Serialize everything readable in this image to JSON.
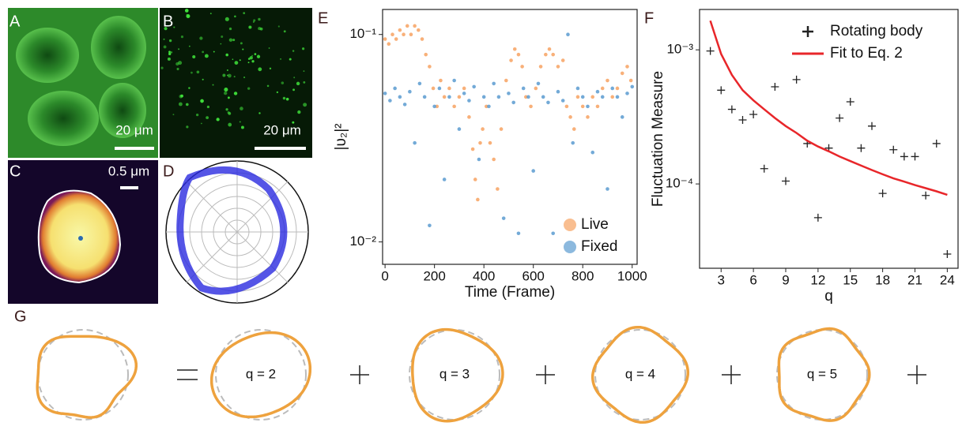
{
  "panels": {
    "labels": [
      "A",
      "B",
      "C",
      "D",
      "E",
      "F",
      "G"
    ],
    "scale_bars": [
      "20 μm",
      "20 μm",
      "0.5 μm"
    ],
    "decomposition": [
      "q = 2",
      "q = 3",
      "q = 4",
      "q = 5"
    ]
  },
  "chart_data": [
    {
      "type": "scatter",
      "xlabel": "Time (Frame)",
      "ylabel": "|υ₂|²",
      "log_y": true,
      "legend": "lower right",
      "xlim": [
        -10,
        1020
      ],
      "ylim": [
        0.0078,
        0.132
      ],
      "xticks": [
        0,
        200,
        400,
        600,
        800,
        1000
      ],
      "yticks": [
        {
          "value": 0.01,
          "label": "10⁻²"
        },
        {
          "value": 0.1,
          "label": "10⁻¹"
        }
      ],
      "series": [
        {
          "name": "Live",
          "color": "#f7a261",
          "x": [
            0,
            15,
            30,
            45,
            60,
            75,
            90,
            105,
            120,
            135,
            150,
            165,
            180,
            195,
            210,
            225,
            240,
            260,
            280,
            300,
            320,
            340,
            355,
            365,
            375,
            385,
            395,
            410,
            425,
            440,
            455,
            470,
            490,
            510,
            525,
            540,
            555,
            570,
            590,
            610,
            630,
            650,
            665,
            680,
            700,
            720,
            735,
            750,
            765,
            780,
            800,
            820,
            840,
            860,
            880,
            900,
            920,
            940,
            960,
            980,
            995
          ],
          "values": [
            0.095,
            0.09,
            0.1,
            0.095,
            0.105,
            0.1,
            0.11,
            0.1,
            0.11,
            0.105,
            0.095,
            0.08,
            0.07,
            0.055,
            0.045,
            0.06,
            0.05,
            0.055,
            0.045,
            0.05,
            0.055,
            0.04,
            0.028,
            0.02,
            0.016,
            0.03,
            0.035,
            0.045,
            0.03,
            0.025,
            0.018,
            0.035,
            0.06,
            0.075,
            0.085,
            0.08,
            0.07,
            0.05,
            0.045,
            0.055,
            0.07,
            0.08,
            0.085,
            0.08,
            0.07,
            0.075,
            0.045,
            0.04,
            0.035,
            0.05,
            0.045,
            0.04,
            0.05,
            0.045,
            0.055,
            0.06,
            0.05,
            0.055,
            0.065,
            0.07,
            0.06
          ]
        },
        {
          "name": "Fixed",
          "color": "#5b9bd0",
          "x": [
            0,
            20,
            40,
            60,
            80,
            100,
            120,
            140,
            160,
            180,
            200,
            220,
            240,
            260,
            280,
            300,
            320,
            340,
            360,
            380,
            400,
            420,
            440,
            460,
            480,
            500,
            520,
            540,
            560,
            580,
            600,
            620,
            640,
            660,
            680,
            700,
            720,
            740,
            760,
            780,
            800,
            820,
            840,
            860,
            880,
            900,
            920,
            940,
            960,
            980,
            1000
          ],
          "values": [
            0.052,
            0.048,
            0.055,
            0.05,
            0.046,
            0.053,
            0.03,
            0.058,
            0.05,
            0.012,
            0.045,
            0.055,
            0.02,
            0.05,
            0.06,
            0.035,
            0.052,
            0.048,
            0.056,
            0.025,
            0.05,
            0.045,
            0.058,
            0.05,
            0.013,
            0.052,
            0.047,
            0.011,
            0.055,
            0.05,
            0.022,
            0.058,
            0.05,
            0.047,
            0.011,
            0.053,
            0.048,
            0.1,
            0.03,
            0.055,
            0.05,
            0.045,
            0.027,
            0.053,
            0.05,
            0.018,
            0.055,
            0.05,
            0.04,
            0.052,
            0.056
          ]
        }
      ]
    },
    {
      "type": "scatter",
      "xlabel": "q",
      "ylabel": "Fluctuation Measure",
      "log_y": true,
      "legend": "upper right",
      "xlim": [
        1,
        25
      ],
      "ylim": [
        2.35e-05,
        0.002
      ],
      "xticks": [
        3,
        6,
        9,
        12,
        15,
        18,
        21,
        24
      ],
      "yticks": [
        {
          "value": 0.0001,
          "label": "10⁻⁴"
        },
        {
          "value": 0.001,
          "label": "10⁻³"
        }
      ],
      "series": [
        {
          "name": "Rotating body",
          "type": "scatter",
          "color": "#222222",
          "x": [
            2,
            3,
            4,
            5,
            6,
            7,
            8,
            9,
            10,
            11,
            12,
            13,
            14,
            15,
            16,
            17,
            18,
            19,
            20,
            21,
            22,
            23,
            24
          ],
          "values": [
            0.00098,
            0.0005,
            0.00036,
            0.0003,
            0.00033,
            0.00013,
            0.00053,
            0.000105,
            0.0006,
            0.0002,
            5.6e-05,
            0.000185,
            0.00031,
            0.00041,
            0.000185,
            0.00027,
            8.5e-05,
            0.00018,
            0.00016,
            0.00016,
            8.2e-05,
            0.0002,
            3e-05
          ]
        },
        {
          "name": "Fit to Eq. 2",
          "type": "line",
          "color": "#e8262a",
          "x": [
            2,
            3,
            4,
            5,
            6,
            7,
            8,
            9,
            10,
            11,
            12,
            13,
            14,
            15,
            16,
            17,
            18,
            19,
            20,
            21,
            22,
            23,
            24
          ],
          "values": [
            0.00165,
            0.00093,
            0.00065,
            0.0005,
            0.00042,
            0.00036,
            0.00031,
            0.00027,
            0.00024,
            0.00021,
            0.00019,
            0.000175,
            0.00016,
            0.000148,
            0.000137,
            0.000127,
            0.000118,
            0.00011,
            0.000104,
            9.8e-05,
            9.3e-05,
            8.8e-05,
            8.3e-05
          ]
        }
      ]
    }
  ]
}
